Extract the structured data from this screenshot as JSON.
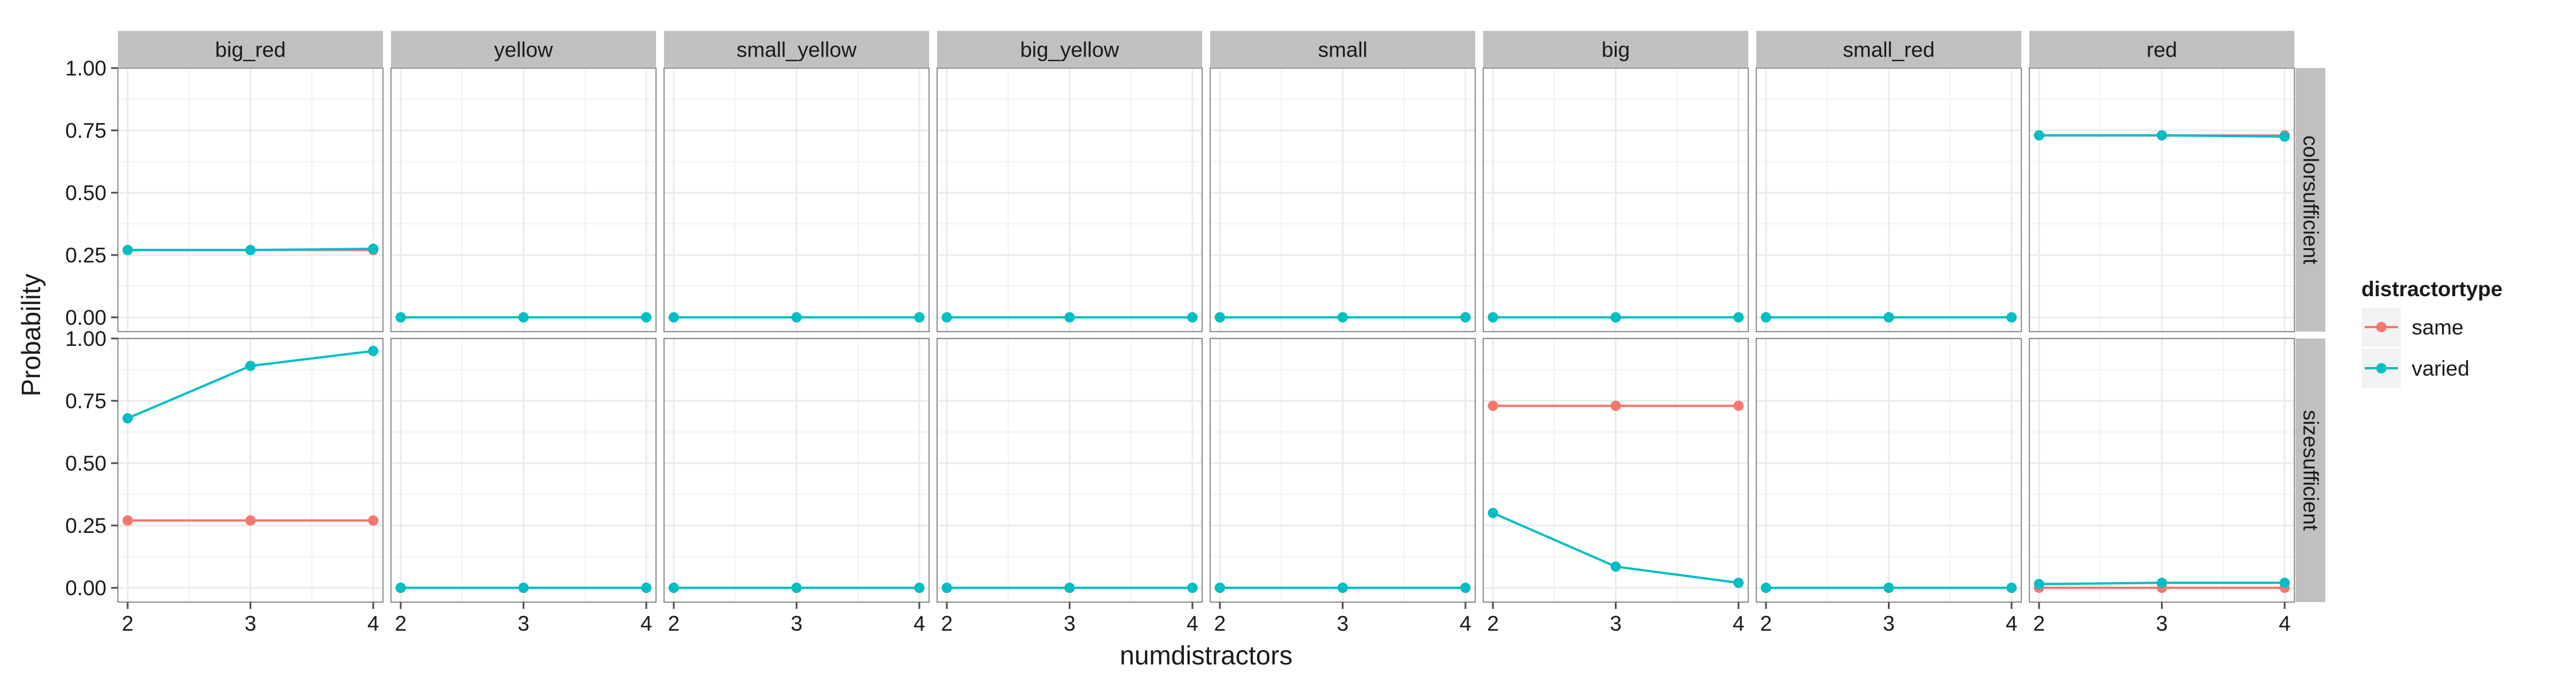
{
  "chart_data": {
    "type": "line",
    "xlabel": "numdistractors",
    "ylabel": "Probability",
    "x": [
      2,
      3,
      4
    ],
    "x_ticks": [
      "2",
      "3",
      "4"
    ],
    "y_ticks": [
      "0.00",
      "0.25",
      "0.50",
      "0.75",
      "1.00"
    ],
    "ylim": [
      0,
      1
    ],
    "column_facets": [
      "big_red",
      "yellow",
      "small_yellow",
      "big_yellow",
      "small",
      "big",
      "small_red",
      "red"
    ],
    "row_facets": [
      "colorsufficient",
      "sizesufficient"
    ],
    "legend": {
      "title": "distractortype",
      "position": "right",
      "entries": [
        "same",
        "varied"
      ]
    },
    "colors": {
      "same": "#F8766D",
      "varied": "#00BFC4",
      "strip": "#C0C0C0",
      "grid": "#EBEBEB"
    },
    "grid": true,
    "panels": [
      {
        "row": "colorsufficient",
        "columns": [
          {
            "col": "big_red",
            "same": [
              0.27,
              0.27,
              0.27
            ],
            "varied": [
              0.27,
              0.27,
              0.275
            ]
          },
          {
            "col": "yellow",
            "same": [
              0,
              0,
              0
            ],
            "varied": [
              0,
              0,
              0
            ]
          },
          {
            "col": "small_yellow",
            "same": [
              0,
              0,
              0
            ],
            "varied": [
              0,
              0,
              0
            ]
          },
          {
            "col": "big_yellow",
            "same": [
              0,
              0,
              0
            ],
            "varied": [
              0,
              0,
              0
            ]
          },
          {
            "col": "small",
            "same": [
              0,
              0,
              0
            ],
            "varied": [
              0,
              0,
              0
            ]
          },
          {
            "col": "big",
            "same": [
              0,
              0,
              0
            ],
            "varied": [
              0,
              0,
              0
            ]
          },
          {
            "col": "small_red",
            "same": [
              0,
              0,
              0
            ],
            "varied": [
              0,
              0,
              0
            ]
          },
          {
            "col": "red",
            "same": [
              0.73,
              0.73,
              0.73
            ],
            "varied": [
              0.73,
              0.73,
              0.725
            ]
          }
        ]
      },
      {
        "row": "sizesufficient",
        "columns": [
          {
            "col": "big_red",
            "same": [
              0.27,
              0.27,
              0.27
            ],
            "varied": [
              0.68,
              0.89,
              0.95
            ]
          },
          {
            "col": "yellow",
            "same": [
              0,
              0,
              0
            ],
            "varied": [
              0,
              0,
              0
            ]
          },
          {
            "col": "small_yellow",
            "same": [
              0,
              0,
              0
            ],
            "varied": [
              0,
              0,
              0
            ]
          },
          {
            "col": "big_yellow",
            "same": [
              0,
              0,
              0
            ],
            "varied": [
              0,
              0,
              0
            ]
          },
          {
            "col": "small",
            "same": [
              0,
              0,
              0
            ],
            "varied": [
              0,
              0,
              0
            ]
          },
          {
            "col": "big",
            "same": [
              0.73,
              0.73,
              0.73
            ],
            "varied": [
              0.3,
              0.085,
              0.02
            ]
          },
          {
            "col": "small_red",
            "same": [
              0,
              0,
              0
            ],
            "varied": [
              0,
              0,
              0
            ]
          },
          {
            "col": "red",
            "same": [
              0,
              0,
              0
            ],
            "varied": [
              0.015,
              0.02,
              0.02
            ]
          }
        ]
      }
    ]
  }
}
